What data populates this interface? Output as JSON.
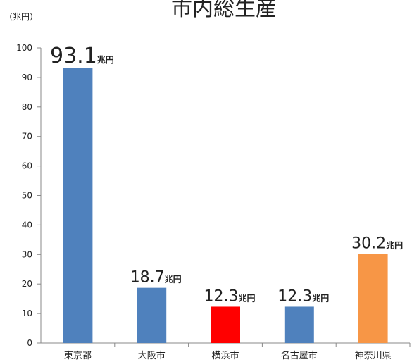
{
  "chart_data": {
    "type": "bar",
    "title": "市内総生産",
    "ylabel": "（兆円）",
    "unit_suffix": "兆円",
    "categories": [
      "東京都",
      "大阪市",
      "横浜市",
      "名古屋市",
      "神奈川県"
    ],
    "values": [
      93.1,
      18.7,
      12.3,
      12.3,
      30.2
    ],
    "value_labels": [
      "93.1",
      "18.7",
      "12.3",
      "12.3",
      "30.2"
    ],
    "bar_colors": [
      "#4f81bd",
      "#4f81bd",
      "#ff0000",
      "#4f81bd",
      "#f79646"
    ],
    "ylim": [
      0,
      100
    ],
    "yticks": [
      "0",
      "10",
      "20",
      "30",
      "40",
      "50",
      "60",
      "70",
      "80",
      "90",
      "100"
    ],
    "grid": false,
    "legend": "none"
  }
}
